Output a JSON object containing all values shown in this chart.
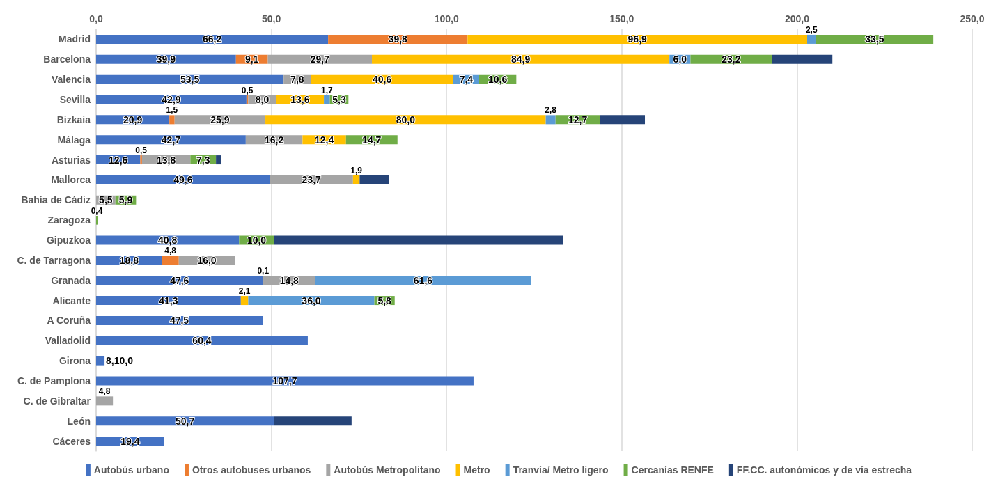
{
  "chart_data": {
    "type": "bar",
    "orientation": "horizontal",
    "stacked": true,
    "grid": "x",
    "legend": "bottom",
    "categories": [
      "Madrid",
      "Barcelona",
      "Valencia",
      "Sevilla",
      "Bizkaia",
      "Málaga",
      "Asturias",
      "Mallorca",
      "Bahía de Cádiz",
      "Zaragoza",
      "Gipuzkoa",
      "C. de Tarragona",
      "Granada",
      "Alicante",
      "A Coruña",
      "Valladolid",
      "Girona",
      "C. de Pamplona",
      "C. de Gibraltar",
      "León",
      "Cáceres"
    ],
    "xlim": [
      0,
      250
    ],
    "xticks": [
      {
        "value": 0,
        "label": "0,0"
      },
      {
        "value": 50,
        "label": "50,0"
      },
      {
        "value": 100,
        "label": "100,0"
      },
      {
        "value": 150,
        "label": "150,0"
      },
      {
        "value": 200,
        "label": "200,0"
      },
      {
        "value": 250,
        "label": "250,0"
      }
    ],
    "series": [
      {
        "name": "Autobús urbano",
        "color": "#4472c4",
        "values": [
          66.2,
          39.9,
          53.5,
          42.9,
          20.9,
          42.7,
          12.6,
          49.6,
          null,
          null,
          40.8,
          18.8,
          47.6,
          41.3,
          47.5,
          60.4,
          2.4,
          107.7,
          null,
          50.7,
          19.4
        ],
        "value_labels": [
          "66,2",
          "39,9",
          "53,5",
          "42,9",
          "20,9",
          "42,7",
          "12,6",
          "49,6",
          null,
          null,
          "40,8",
          "18,8",
          "47,6",
          "41,3",
          "47,5",
          "60,4",
          null,
          "107,7",
          null,
          "50,7",
          "19,4"
        ]
      },
      {
        "name": "Otros autobuses urbanos",
        "color": "#ed7d31",
        "values": [
          39.8,
          9.1,
          null,
          0.5,
          1.5,
          null,
          0.5,
          null,
          null,
          null,
          null,
          4.8,
          0.1,
          null,
          null,
          null,
          null,
          null,
          null,
          null,
          null
        ],
        "value_labels": [
          "39,8",
          "9,1",
          null,
          "0,5",
          "1,5",
          null,
          "0,5",
          null,
          null,
          null,
          null,
          "4,8",
          "0,1",
          null,
          null,
          null,
          null,
          null,
          null,
          null,
          null
        ]
      },
      {
        "name": "Autobús Metropolitano",
        "color": "#a5a5a5",
        "values": [
          null,
          29.7,
          7.8,
          8.0,
          25.9,
          16.2,
          13.8,
          23.7,
          5.5,
          null,
          null,
          16.0,
          14.8,
          null,
          null,
          null,
          null,
          null,
          4.8,
          null,
          null
        ],
        "value_labels": [
          null,
          "29,7",
          "7,8",
          "8,0",
          "25,9",
          "16,2",
          "13,8",
          "23,7",
          "5,5",
          null,
          null,
          "16,0",
          "14,8",
          null,
          null,
          null,
          null,
          null,
          "4,8",
          null,
          null
        ]
      },
      {
        "name": "Metro",
        "color": "#ffc000",
        "values": [
          96.9,
          84.9,
          40.6,
          13.6,
          80.0,
          12.4,
          null,
          1.9,
          null,
          null,
          null,
          null,
          null,
          2.1,
          null,
          null,
          null,
          null,
          null,
          null,
          null
        ],
        "value_labels": [
          "96,9",
          "84,9",
          "40,6",
          "13,6",
          "80,0",
          "12,4",
          null,
          "1,9",
          null,
          null,
          null,
          null,
          null,
          "2,1",
          null,
          null,
          null,
          null,
          null,
          null,
          null
        ]
      },
      {
        "name": "Tranvía/ Metro ligero",
        "color": "#5b9bd5",
        "values": [
          2.5,
          6.0,
          7.4,
          1.7,
          2.8,
          null,
          null,
          null,
          null,
          null,
          null,
          null,
          61.6,
          36.0,
          null,
          null,
          null,
          null,
          null,
          null,
          null
        ],
        "value_labels": [
          "2,5",
          "6,0",
          "7,4",
          "1,7",
          "2,8",
          null,
          null,
          null,
          null,
          null,
          null,
          null,
          "61,6",
          "36,0",
          null,
          null,
          null,
          null,
          null,
          null,
          null
        ]
      },
      {
        "name": "Cercanías RENFE",
        "color": "#70ad47",
        "values": [
          33.5,
          23.2,
          10.6,
          5.3,
          12.7,
          14.7,
          7.3,
          null,
          5.9,
          0.4,
          10.0,
          null,
          null,
          5.8,
          null,
          null,
          null,
          null,
          null,
          null,
          null
        ],
        "value_labels": [
          "33,5",
          "23,2",
          "10,6",
          "5,3",
          "12,7",
          "14,7",
          "7,3",
          null,
          "5,9",
          "0,4",
          "10,0",
          null,
          null,
          "5,8",
          null,
          null,
          null,
          null,
          null,
          null,
          null
        ]
      },
      {
        "name": "FF.CC. autonómicos y de vía estrecha",
        "color": "#264478",
        "values": [
          null,
          17.3,
          null,
          null,
          12.8,
          null,
          1.4,
          8.3,
          null,
          null,
          82.5,
          null,
          null,
          null,
          null,
          null,
          null,
          null,
          null,
          22.2,
          null
        ]
      }
    ],
    "annotations": [
      {
        "text": "8,10,0",
        "x": 2.4,
        "y": "Girona"
      }
    ]
  }
}
